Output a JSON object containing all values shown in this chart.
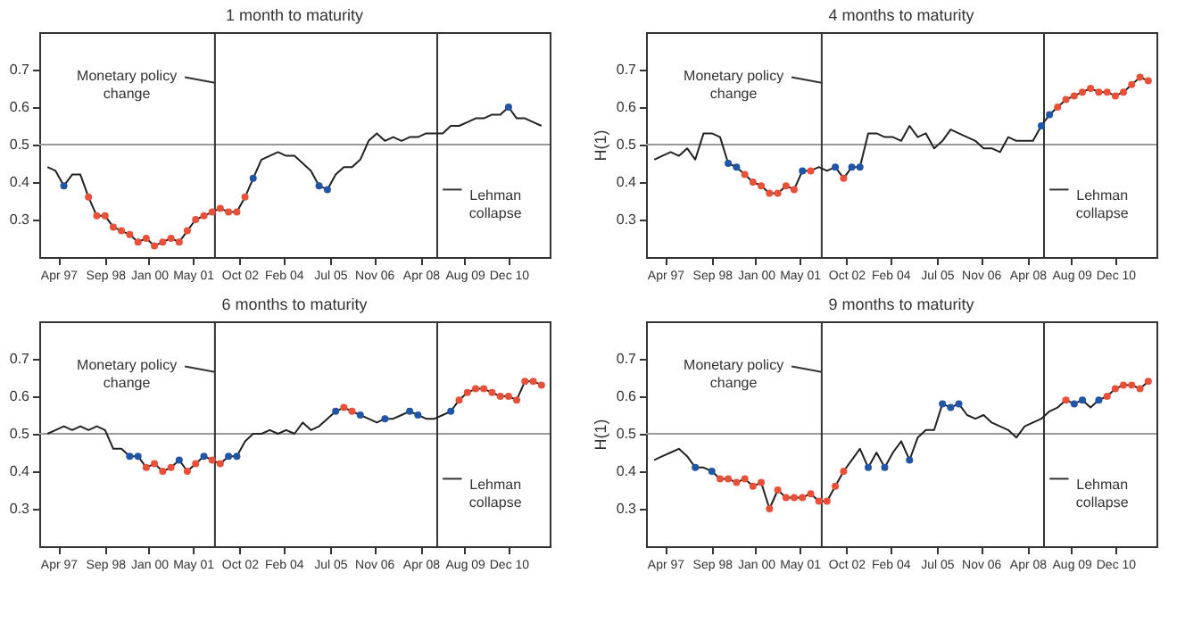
{
  "chart_data": [
    {
      "type": "line",
      "title": "1 month to maturity",
      "xlim": [
        "1996-09",
        "2012-03"
      ],
      "ylim": [
        0.2,
        0.8
      ],
      "yticks": [
        0.3,
        0.4,
        0.5,
        0.6,
        0.7
      ],
      "xticks": [
        {
          "value": "1997-04",
          "label": "Apr 97"
        },
        {
          "value": "1998-09",
          "label": "Sep 98"
        },
        {
          "value": "2000-01",
          "label": "Jan 00"
        },
        {
          "value": "2001-05",
          "label": "May 01"
        },
        {
          "value": "2002-10",
          "label": "Oct 02"
        },
        {
          "value": "2004-02",
          "label": "Feb 04"
        },
        {
          "value": "2005-07",
          "label": "Jul 05"
        },
        {
          "value": "2006-11",
          "label": "Nov 06"
        },
        {
          "value": "2008-04",
          "label": "Apr 08"
        },
        {
          "value": "2009-08",
          "label": "Aug 09"
        },
        {
          "value": "2010-12",
          "label": "Dec 10"
        }
      ],
      "x": [
        "1996-12",
        "1997-03",
        "1997-06",
        "1997-09",
        "1997-12",
        "1998-03",
        "1998-06",
        "1998-09",
        "1998-12",
        "1999-03",
        "1999-06",
        "1999-09",
        "1999-12",
        "2000-03",
        "2000-06",
        "2000-09",
        "2000-12",
        "2001-03",
        "2001-06",
        "2001-09",
        "2001-12",
        "2002-03",
        "2002-06",
        "2002-09",
        "2002-12",
        "2003-03",
        "2003-06",
        "2003-09",
        "2003-12",
        "2004-03",
        "2004-06",
        "2004-09",
        "2004-12",
        "2005-03",
        "2005-06",
        "2005-09",
        "2005-12",
        "2006-03",
        "2006-06",
        "2006-09",
        "2006-12",
        "2007-03",
        "2007-06",
        "2007-09",
        "2007-12",
        "2008-03",
        "2008-06",
        "2008-09",
        "2008-12",
        "2009-03",
        "2009-06",
        "2009-09",
        "2009-12",
        "2010-03",
        "2010-06",
        "2010-09",
        "2010-12",
        "2011-03",
        "2011-06",
        "2011-09",
        "2011-12"
      ],
      "series": [
        {
          "type": "line",
          "color": "#222222",
          "values": [
            0.44,
            0.43,
            0.39,
            0.42,
            0.42,
            0.36,
            0.31,
            0.31,
            0.28,
            0.27,
            0.26,
            0.24,
            0.25,
            0.23,
            0.24,
            0.25,
            0.24,
            0.27,
            0.3,
            0.31,
            0.32,
            0.33,
            0.32,
            0.32,
            0.36,
            0.41,
            0.46,
            0.47,
            0.48,
            0.47,
            0.47,
            0.45,
            0.43,
            0.39,
            0.38,
            0.42,
            0.44,
            0.44,
            0.46,
            0.51,
            0.53,
            0.51,
            0.52,
            0.51,
            0.52,
            0.52,
            0.53,
            0.53,
            0.53,
            0.55,
            0.55,
            0.56,
            0.57,
            0.57,
            0.58,
            0.58,
            0.6,
            0.57,
            0.57,
            0.56,
            0.55
          ]
        },
        {
          "type": "scatter",
          "marker": "circle",
          "color": "#e8503a",
          "x": [
            "1998-03",
            "1998-06",
            "1998-09",
            "1998-12",
            "1999-03",
            "1999-06",
            "1999-09",
            "1999-12",
            "2000-03",
            "2000-06",
            "2000-09",
            "2000-12",
            "2001-03",
            "2001-06",
            "2001-09",
            "2001-12",
            "2002-03",
            "2002-06",
            "2002-09",
            "2002-12"
          ],
          "values": [
            0.36,
            0.31,
            0.31,
            0.28,
            0.27,
            0.26,
            0.24,
            0.25,
            0.23,
            0.24,
            0.25,
            0.24,
            0.27,
            0.3,
            0.31,
            0.32,
            0.33,
            0.32,
            0.32,
            0.36
          ]
        },
        {
          "type": "scatter",
          "marker": "circle",
          "color": "#2155a5",
          "x": [
            "1997-06",
            "2003-03",
            "2005-03",
            "2005-06",
            "2010-12"
          ],
          "values": [
            0.39,
            0.41,
            0.39,
            0.38,
            0.6
          ]
        }
      ],
      "ref_lines": [
        {
          "axis": "y",
          "value": 0.5,
          "color": "#999999"
        },
        {
          "axis": "x",
          "value": "2002-01",
          "color": "#333333"
        },
        {
          "axis": "x",
          "value": "2008-10",
          "color": "#333333"
        }
      ],
      "annotations": [
        {
          "text": "Monetary policy change",
          "x": "2002-01",
          "y": 0.665
        },
        {
          "text": "Lehman collapse",
          "x": "2008-12",
          "y": 0.38
        }
      ]
    },
    {
      "type": "line",
      "title": "4 months to maturity",
      "ylabel": "H(1)",
      "xlim": [
        "1996-09",
        "2012-03"
      ],
      "ylim": [
        0.2,
        0.8
      ],
      "yticks": [
        0.3,
        0.4,
        0.5,
        0.6,
        0.7
      ],
      "xticks": [
        {
          "value": "1997-04",
          "label": "Apr 97"
        },
        {
          "value": "1998-09",
          "label": "Sep 98"
        },
        {
          "value": "2000-01",
          "label": "Jan 00"
        },
        {
          "value": "2001-05",
          "label": "May 01"
        },
        {
          "value": "2002-10",
          "label": "Oct 02"
        },
        {
          "value": "2004-02",
          "label": "Feb 04"
        },
        {
          "value": "2005-07",
          "label": "Jul 05"
        },
        {
          "value": "2006-11",
          "label": "Nov 06"
        },
        {
          "value": "2008-04",
          "label": "Apr 08"
        },
        {
          "value": "2009-08",
          "label": "Aug 09"
        },
        {
          "value": "2010-12",
          "label": "Dec 10"
        }
      ],
      "x": [
        "1996-12",
        "1997-03",
        "1997-06",
        "1997-09",
        "1997-12",
        "1998-03",
        "1998-06",
        "1998-09",
        "1998-12",
        "1999-03",
        "1999-06",
        "1999-09",
        "1999-12",
        "2000-03",
        "2000-06",
        "2000-09",
        "2000-12",
        "2001-03",
        "2001-06",
        "2001-09",
        "2001-12",
        "2002-03",
        "2002-06",
        "2002-09",
        "2002-12",
        "2003-03",
        "2003-06",
        "2003-09",
        "2003-12",
        "2004-03",
        "2004-06",
        "2004-09",
        "2004-12",
        "2005-03",
        "2005-06",
        "2005-09",
        "2005-12",
        "2006-03",
        "2006-06",
        "2006-09",
        "2006-12",
        "2007-03",
        "2007-06",
        "2007-09",
        "2007-12",
        "2008-03",
        "2008-06",
        "2008-09",
        "2008-12",
        "2009-03",
        "2009-06",
        "2009-09",
        "2009-12",
        "2010-03",
        "2010-06",
        "2010-09",
        "2010-12",
        "2011-03",
        "2011-06",
        "2011-09",
        "2011-12"
      ],
      "series": [
        {
          "type": "line",
          "color": "#222222",
          "values": [
            0.46,
            0.47,
            0.48,
            0.47,
            0.49,
            0.46,
            0.53,
            0.53,
            0.52,
            0.45,
            0.44,
            0.42,
            0.4,
            0.39,
            0.37,
            0.37,
            0.39,
            0.38,
            0.43,
            0.43,
            0.44,
            0.43,
            0.44,
            0.41,
            0.44,
            0.44,
            0.53,
            0.53,
            0.52,
            0.52,
            0.51,
            0.55,
            0.52,
            0.53,
            0.49,
            0.51,
            0.54,
            0.53,
            0.52,
            0.51,
            0.49,
            0.49,
            0.48,
            0.52,
            0.51,
            0.51,
            0.51,
            0.55,
            0.58,
            0.6,
            0.62,
            0.63,
            0.64,
            0.65,
            0.64,
            0.64,
            0.63,
            0.64,
            0.66,
            0.68,
            0.67
          ]
        },
        {
          "type": "scatter",
          "marker": "circle",
          "color": "#e8503a",
          "x": [
            "1999-09",
            "1999-12",
            "2000-03",
            "2000-06",
            "2000-09",
            "2000-12",
            "2001-03",
            "2001-09",
            "2002-09",
            "2009-03",
            "2009-06",
            "2009-09",
            "2009-12",
            "2010-03",
            "2010-06",
            "2010-09",
            "2010-12",
            "2011-03",
            "2011-06",
            "2011-09",
            "2011-12"
          ],
          "values": [
            0.42,
            0.4,
            0.39,
            0.37,
            0.37,
            0.39,
            0.38,
            0.43,
            0.41,
            0.6,
            0.62,
            0.63,
            0.64,
            0.65,
            0.64,
            0.64,
            0.63,
            0.64,
            0.66,
            0.68,
            0.67
          ]
        },
        {
          "type": "scatter",
          "marker": "circle",
          "color": "#2155a5",
          "x": [
            "1999-03",
            "1999-06",
            "2001-06",
            "2002-06",
            "2002-12",
            "2003-03",
            "2008-09",
            "2008-12"
          ],
          "values": [
            0.45,
            0.44,
            0.43,
            0.44,
            0.44,
            0.44,
            0.55,
            0.58
          ]
        }
      ],
      "ref_lines": [
        {
          "axis": "y",
          "value": 0.5,
          "color": "#999999"
        },
        {
          "axis": "x",
          "value": "2002-01",
          "color": "#333333"
        },
        {
          "axis": "x",
          "value": "2008-10",
          "color": "#333333"
        }
      ],
      "annotations": [
        {
          "text": "Monetary policy change",
          "x": "2002-01",
          "y": 0.665
        },
        {
          "text": "Lehman collapse",
          "x": "2008-12",
          "y": 0.38
        }
      ]
    },
    {
      "type": "line",
      "title": "6 months to maturity",
      "xlim": [
        "1996-09",
        "2012-03"
      ],
      "ylim": [
        0.2,
        0.8
      ],
      "yticks": [
        0.3,
        0.4,
        0.5,
        0.6,
        0.7
      ],
      "xticks": [
        {
          "value": "1997-04",
          "label": "Apr 97"
        },
        {
          "value": "1998-09",
          "label": "Sep 98"
        },
        {
          "value": "2000-01",
          "label": "Jan 00"
        },
        {
          "value": "2001-05",
          "label": "May 01"
        },
        {
          "value": "2002-10",
          "label": "Oct 02"
        },
        {
          "value": "2004-02",
          "label": "Feb 04"
        },
        {
          "value": "2005-07",
          "label": "Jul 05"
        },
        {
          "value": "2006-11",
          "label": "Nov 06"
        },
        {
          "value": "2008-04",
          "label": "Apr 08"
        },
        {
          "value": "2009-08",
          "label": "Aug 09"
        },
        {
          "value": "2010-12",
          "label": "Dec 10"
        }
      ],
      "x": [
        "1996-12",
        "1997-03",
        "1997-06",
        "1997-09",
        "1997-12",
        "1998-03",
        "1998-06",
        "1998-09",
        "1998-12",
        "1999-03",
        "1999-06",
        "1999-09",
        "1999-12",
        "2000-03",
        "2000-06",
        "2000-09",
        "2000-12",
        "2001-03",
        "2001-06",
        "2001-09",
        "2001-12",
        "2002-03",
        "2002-06",
        "2002-09",
        "2002-12",
        "2003-03",
        "2003-06",
        "2003-09",
        "2003-12",
        "2004-03",
        "2004-06",
        "2004-09",
        "2004-12",
        "2005-03",
        "2005-06",
        "2005-09",
        "2005-12",
        "2006-03",
        "2006-06",
        "2006-09",
        "2006-12",
        "2007-03",
        "2007-06",
        "2007-09",
        "2007-12",
        "2008-03",
        "2008-06",
        "2008-09",
        "2008-12",
        "2009-03",
        "2009-06",
        "2009-09",
        "2009-12",
        "2010-03",
        "2010-06",
        "2010-09",
        "2010-12",
        "2011-03",
        "2011-06",
        "2011-09",
        "2011-12"
      ],
      "series": [
        {
          "type": "line",
          "color": "#222222",
          "values": [
            0.5,
            0.51,
            0.52,
            0.51,
            0.52,
            0.51,
            0.52,
            0.51,
            0.46,
            0.46,
            0.44,
            0.44,
            0.41,
            0.42,
            0.4,
            0.41,
            0.43,
            0.4,
            0.42,
            0.44,
            0.43,
            0.42,
            0.44,
            0.44,
            0.48,
            0.5,
            0.5,
            0.51,
            0.5,
            0.51,
            0.5,
            0.53,
            0.51,
            0.52,
            0.54,
            0.56,
            0.57,
            0.56,
            0.55,
            0.54,
            0.53,
            0.54,
            0.54,
            0.55,
            0.56,
            0.55,
            0.54,
            0.54,
            0.55,
            0.56,
            0.59,
            0.61,
            0.62,
            0.62,
            0.61,
            0.6,
            0.6,
            0.59,
            0.64,
            0.64,
            0.63
          ]
        },
        {
          "type": "scatter",
          "marker": "circle",
          "color": "#e8503a",
          "x": [
            "1999-12",
            "2000-03",
            "2000-06",
            "2000-09",
            "2001-03",
            "2001-06",
            "2001-12",
            "2002-03",
            "2005-12",
            "2006-03",
            "2009-06",
            "2009-09",
            "2009-12",
            "2010-03",
            "2010-06",
            "2010-09",
            "2010-12",
            "2011-03",
            "2011-06",
            "2011-09",
            "2011-12"
          ],
          "values": [
            0.41,
            0.42,
            0.4,
            0.41,
            0.4,
            0.42,
            0.43,
            0.42,
            0.57,
            0.56,
            0.59,
            0.61,
            0.62,
            0.62,
            0.61,
            0.6,
            0.6,
            0.59,
            0.64,
            0.64,
            0.63
          ]
        },
        {
          "type": "scatter",
          "marker": "circle",
          "color": "#2155a5",
          "x": [
            "1999-06",
            "1999-09",
            "2000-12",
            "2001-09",
            "2002-06",
            "2002-09",
            "2005-09",
            "2006-06",
            "2007-03",
            "2007-12",
            "2008-03",
            "2009-03"
          ],
          "values": [
            0.44,
            0.44,
            0.43,
            0.44,
            0.44,
            0.44,
            0.56,
            0.55,
            0.54,
            0.56,
            0.55,
            0.56
          ]
        }
      ],
      "ref_lines": [
        {
          "axis": "y",
          "value": 0.5,
          "color": "#999999"
        },
        {
          "axis": "x",
          "value": "2002-01",
          "color": "#333333"
        },
        {
          "axis": "x",
          "value": "2008-10",
          "color": "#333333"
        }
      ],
      "annotations": [
        {
          "text": "Monetary policy change",
          "x": "2002-01",
          "y": 0.665
        },
        {
          "text": "Lehman collapse",
          "x": "2008-12",
          "y": 0.38
        }
      ]
    },
    {
      "type": "line",
      "title": "9 months to maturity",
      "ylabel": "H(1)",
      "xlim": [
        "1996-09",
        "2012-03"
      ],
      "ylim": [
        0.2,
        0.8
      ],
      "yticks": [
        0.3,
        0.4,
        0.5,
        0.6,
        0.7
      ],
      "xticks": [
        {
          "value": "1997-04",
          "label": "Apr 97"
        },
        {
          "value": "1998-09",
          "label": "Sep 98"
        },
        {
          "value": "2000-01",
          "label": "Jan 00"
        },
        {
          "value": "2001-05",
          "label": "May 01"
        },
        {
          "value": "2002-10",
          "label": "Oct 02"
        },
        {
          "value": "2004-02",
          "label": "Feb 04"
        },
        {
          "value": "2005-07",
          "label": "Jul 05"
        },
        {
          "value": "2006-11",
          "label": "Nov 06"
        },
        {
          "value": "2008-04",
          "label": "Apr 08"
        },
        {
          "value": "2009-08",
          "label": "Aug 09"
        },
        {
          "value": "2010-12",
          "label": "Dec 10"
        }
      ],
      "x": [
        "1996-12",
        "1997-03",
        "1997-06",
        "1997-09",
        "1997-12",
        "1998-03",
        "1998-06",
        "1998-09",
        "1998-12",
        "1999-03",
        "1999-06",
        "1999-09",
        "1999-12",
        "2000-03",
        "2000-06",
        "2000-09",
        "2000-12",
        "2001-03",
        "2001-06",
        "2001-09",
        "2001-12",
        "2002-03",
        "2002-06",
        "2002-09",
        "2002-12",
        "2003-03",
        "2003-06",
        "2003-09",
        "2003-12",
        "2004-03",
        "2004-06",
        "2004-09",
        "2004-12",
        "2005-03",
        "2005-06",
        "2005-09",
        "2005-12",
        "2006-03",
        "2006-06",
        "2006-09",
        "2006-12",
        "2007-03",
        "2007-06",
        "2007-09",
        "2007-12",
        "2008-03",
        "2008-06",
        "2008-09",
        "2008-12",
        "2009-03",
        "2009-06",
        "2009-09",
        "2009-12",
        "2010-03",
        "2010-06",
        "2010-09",
        "2010-12",
        "2011-03",
        "2011-06",
        "2011-09",
        "2011-12"
      ],
      "series": [
        {
          "type": "line",
          "color": "#222222",
          "values": [
            0.43,
            0.44,
            0.45,
            0.46,
            0.44,
            0.41,
            0.41,
            0.4,
            0.38,
            0.38,
            0.37,
            0.38,
            0.36,
            0.37,
            0.3,
            0.35,
            0.33,
            0.33,
            0.33,
            0.34,
            0.32,
            0.32,
            0.36,
            0.4,
            0.43,
            0.46,
            0.41,
            0.45,
            0.41,
            0.45,
            0.48,
            0.43,
            0.49,
            0.51,
            0.51,
            0.58,
            0.57,
            0.58,
            0.55,
            0.54,
            0.55,
            0.53,
            0.52,
            0.51,
            0.49,
            0.52,
            0.53,
            0.54,
            0.56,
            0.57,
            0.59,
            0.58,
            0.59,
            0.57,
            0.59,
            0.6,
            0.62,
            0.63,
            0.63,
            0.62,
            0.64
          ]
        },
        {
          "type": "scatter",
          "marker": "circle",
          "color": "#e8503a",
          "x": [
            "1998-12",
            "1999-03",
            "1999-06",
            "1999-09",
            "1999-12",
            "2000-03",
            "2000-06",
            "2000-09",
            "2000-12",
            "2001-03",
            "2001-06",
            "2001-09",
            "2001-12",
            "2002-03",
            "2002-06",
            "2002-09",
            "2009-06",
            "2010-09",
            "2010-12",
            "2011-03",
            "2011-06",
            "2011-09",
            "2011-12"
          ],
          "values": [
            0.38,
            0.38,
            0.37,
            0.38,
            0.36,
            0.37,
            0.3,
            0.35,
            0.33,
            0.33,
            0.33,
            0.34,
            0.32,
            0.32,
            0.36,
            0.4,
            0.59,
            0.6,
            0.62,
            0.63,
            0.63,
            0.62,
            0.64
          ]
        },
        {
          "type": "scatter",
          "marker": "circle",
          "color": "#2155a5",
          "x": [
            "1998-03",
            "1998-09",
            "2003-06",
            "2003-12",
            "2004-09",
            "2005-09",
            "2005-12",
            "2006-03",
            "2009-09",
            "2009-12",
            "2010-06"
          ],
          "values": [
            0.41,
            0.4,
            0.41,
            0.41,
            0.43,
            0.58,
            0.57,
            0.58,
            0.58,
            0.59,
            0.59
          ]
        }
      ],
      "ref_lines": [
        {
          "axis": "y",
          "value": 0.5,
          "color": "#999999"
        },
        {
          "axis": "x",
          "value": "2002-01",
          "color": "#333333"
        },
        {
          "axis": "x",
          "value": "2008-10",
          "color": "#333333"
        }
      ],
      "annotations": [
        {
          "text": "Monetary policy change",
          "x": "2002-01",
          "y": 0.665
        },
        {
          "text": "Lehman collapse",
          "x": "2008-12",
          "y": 0.38
        }
      ]
    }
  ]
}
